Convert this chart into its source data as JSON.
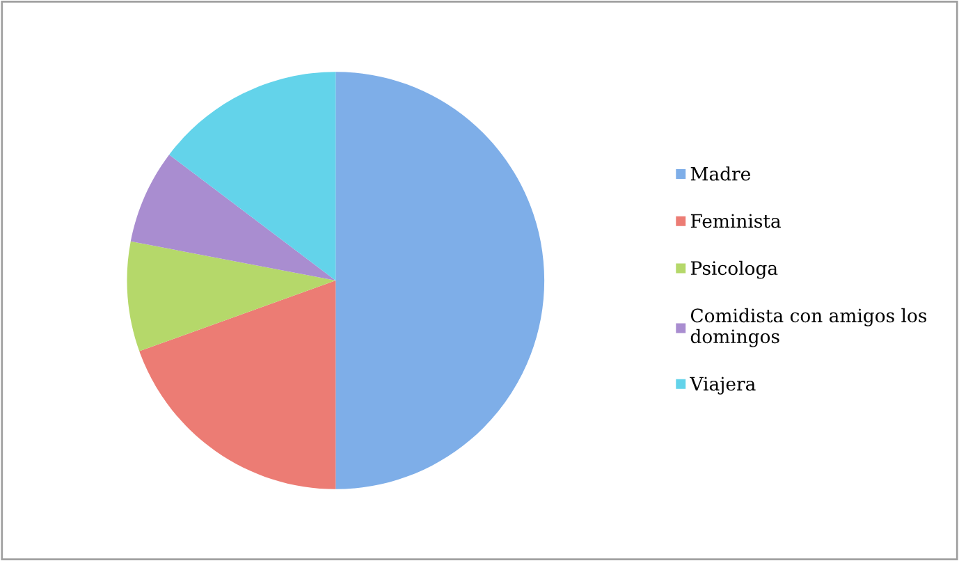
{
  "chart_data": {
    "type": "pie",
    "categories": [
      "Madre",
      "Feminista",
      "Psicologa",
      "Comidista con amigos los domingos",
      "Viajera"
    ],
    "values": [
      50,
      19.5,
      8.5,
      7.3,
      14.7
    ],
    "colors": [
      "#7eaee8",
      "#ec7c74",
      "#b5d86a",
      "#a98dd0",
      "#63d3ea"
    ],
    "legend": "right"
  }
}
